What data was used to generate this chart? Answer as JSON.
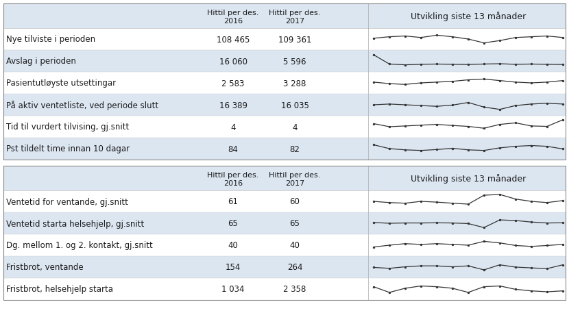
{
  "table1_rows": [
    {
      "label": "Nye tilviste i perioden",
      "val2016": "108 465",
      "val2017": "109 361"
    },
    {
      "label": "Avslag i perioden",
      "val2016": "16 060",
      "val2017": "5 596"
    },
    {
      "label": "Pasientutløyste utsettingar",
      "val2016": "2 583",
      "val2017": "3 288"
    },
    {
      "label": "På aktiv ventetliste, ved periode slutt",
      "val2016": "16 389",
      "val2017": "16 035"
    },
    {
      "label": "Tid til vurdert tilvising, gj.snitt",
      "val2016": "4",
      "val2017": "4"
    },
    {
      "label": "Pst tildelt time innan 10 dagar",
      "val2016": "84",
      "val2017": "82"
    }
  ],
  "table1_sparklines": [
    [
      0.55,
      0.65,
      0.7,
      0.6,
      0.75,
      0.65,
      0.5,
      0.25,
      0.4,
      0.6,
      0.65,
      0.7,
      0.6
    ],
    [
      0.9,
      0.3,
      0.25,
      0.28,
      0.3,
      0.28,
      0.27,
      0.3,
      0.32,
      0.28,
      0.3,
      0.28,
      0.27
    ],
    [
      0.55,
      0.45,
      0.4,
      0.5,
      0.55,
      0.6,
      0.7,
      0.75,
      0.65,
      0.55,
      0.5,
      0.55,
      0.65
    ],
    [
      0.5,
      0.55,
      0.5,
      0.45,
      0.4,
      0.48,
      0.65,
      0.35,
      0.2,
      0.45,
      0.55,
      0.6,
      0.55
    ],
    [
      0.7,
      0.5,
      0.55,
      0.6,
      0.65,
      0.58,
      0.52,
      0.4,
      0.65,
      0.75,
      0.55,
      0.52,
      0.95
    ],
    [
      0.75,
      0.5,
      0.42,
      0.38,
      0.44,
      0.52,
      0.42,
      0.38,
      0.55,
      0.65,
      0.7,
      0.65,
      0.48
    ]
  ],
  "table2_rows": [
    {
      "label": "Ventetid for ventande, gj.snitt",
      "val2016": "61",
      "val2017": "60"
    },
    {
      "label": "Ventetid starta helsehjelp, gj.snitt",
      "val2016": "65",
      "val2017": "65"
    },
    {
      "label": "Dg. mellom 1. og 2. kontakt, gj.snitt",
      "val2016": "40",
      "val2017": "40"
    },
    {
      "label": "Fristbrot, ventande",
      "val2016": "154",
      "val2017": "264"
    },
    {
      "label": "Fristbrot, helsehjelp starta",
      "val2016": "1 034",
      "val2017": "2 358"
    }
  ],
  "table2_sparklines": [
    [
      0.5,
      0.42,
      0.38,
      0.5,
      0.45,
      0.38,
      0.32,
      0.9,
      0.95,
      0.65,
      0.5,
      0.42,
      0.55
    ],
    [
      0.55,
      0.5,
      0.52,
      0.52,
      0.53,
      0.52,
      0.48,
      0.22,
      0.72,
      0.68,
      0.58,
      0.52,
      0.53
    ],
    [
      0.38,
      0.5,
      0.6,
      0.55,
      0.6,
      0.55,
      0.5,
      0.75,
      0.65,
      0.48,
      0.42,
      0.48,
      0.55
    ],
    [
      0.48,
      0.42,
      0.52,
      0.58,
      0.58,
      0.52,
      0.58,
      0.32,
      0.65,
      0.5,
      0.45,
      0.4,
      0.65
    ],
    [
      0.65,
      0.28,
      0.55,
      0.7,
      0.65,
      0.55,
      0.28,
      0.65,
      0.7,
      0.48,
      0.38,
      0.32,
      0.38
    ]
  ],
  "bg_color": "#dce6f1",
  "white_color": "#ffffff",
  "text_color": "#1a1a1a",
  "line_color": "#333333",
  "spark_bg_even": "#e8eef6",
  "spark_bg_odd": "#dce6f1"
}
